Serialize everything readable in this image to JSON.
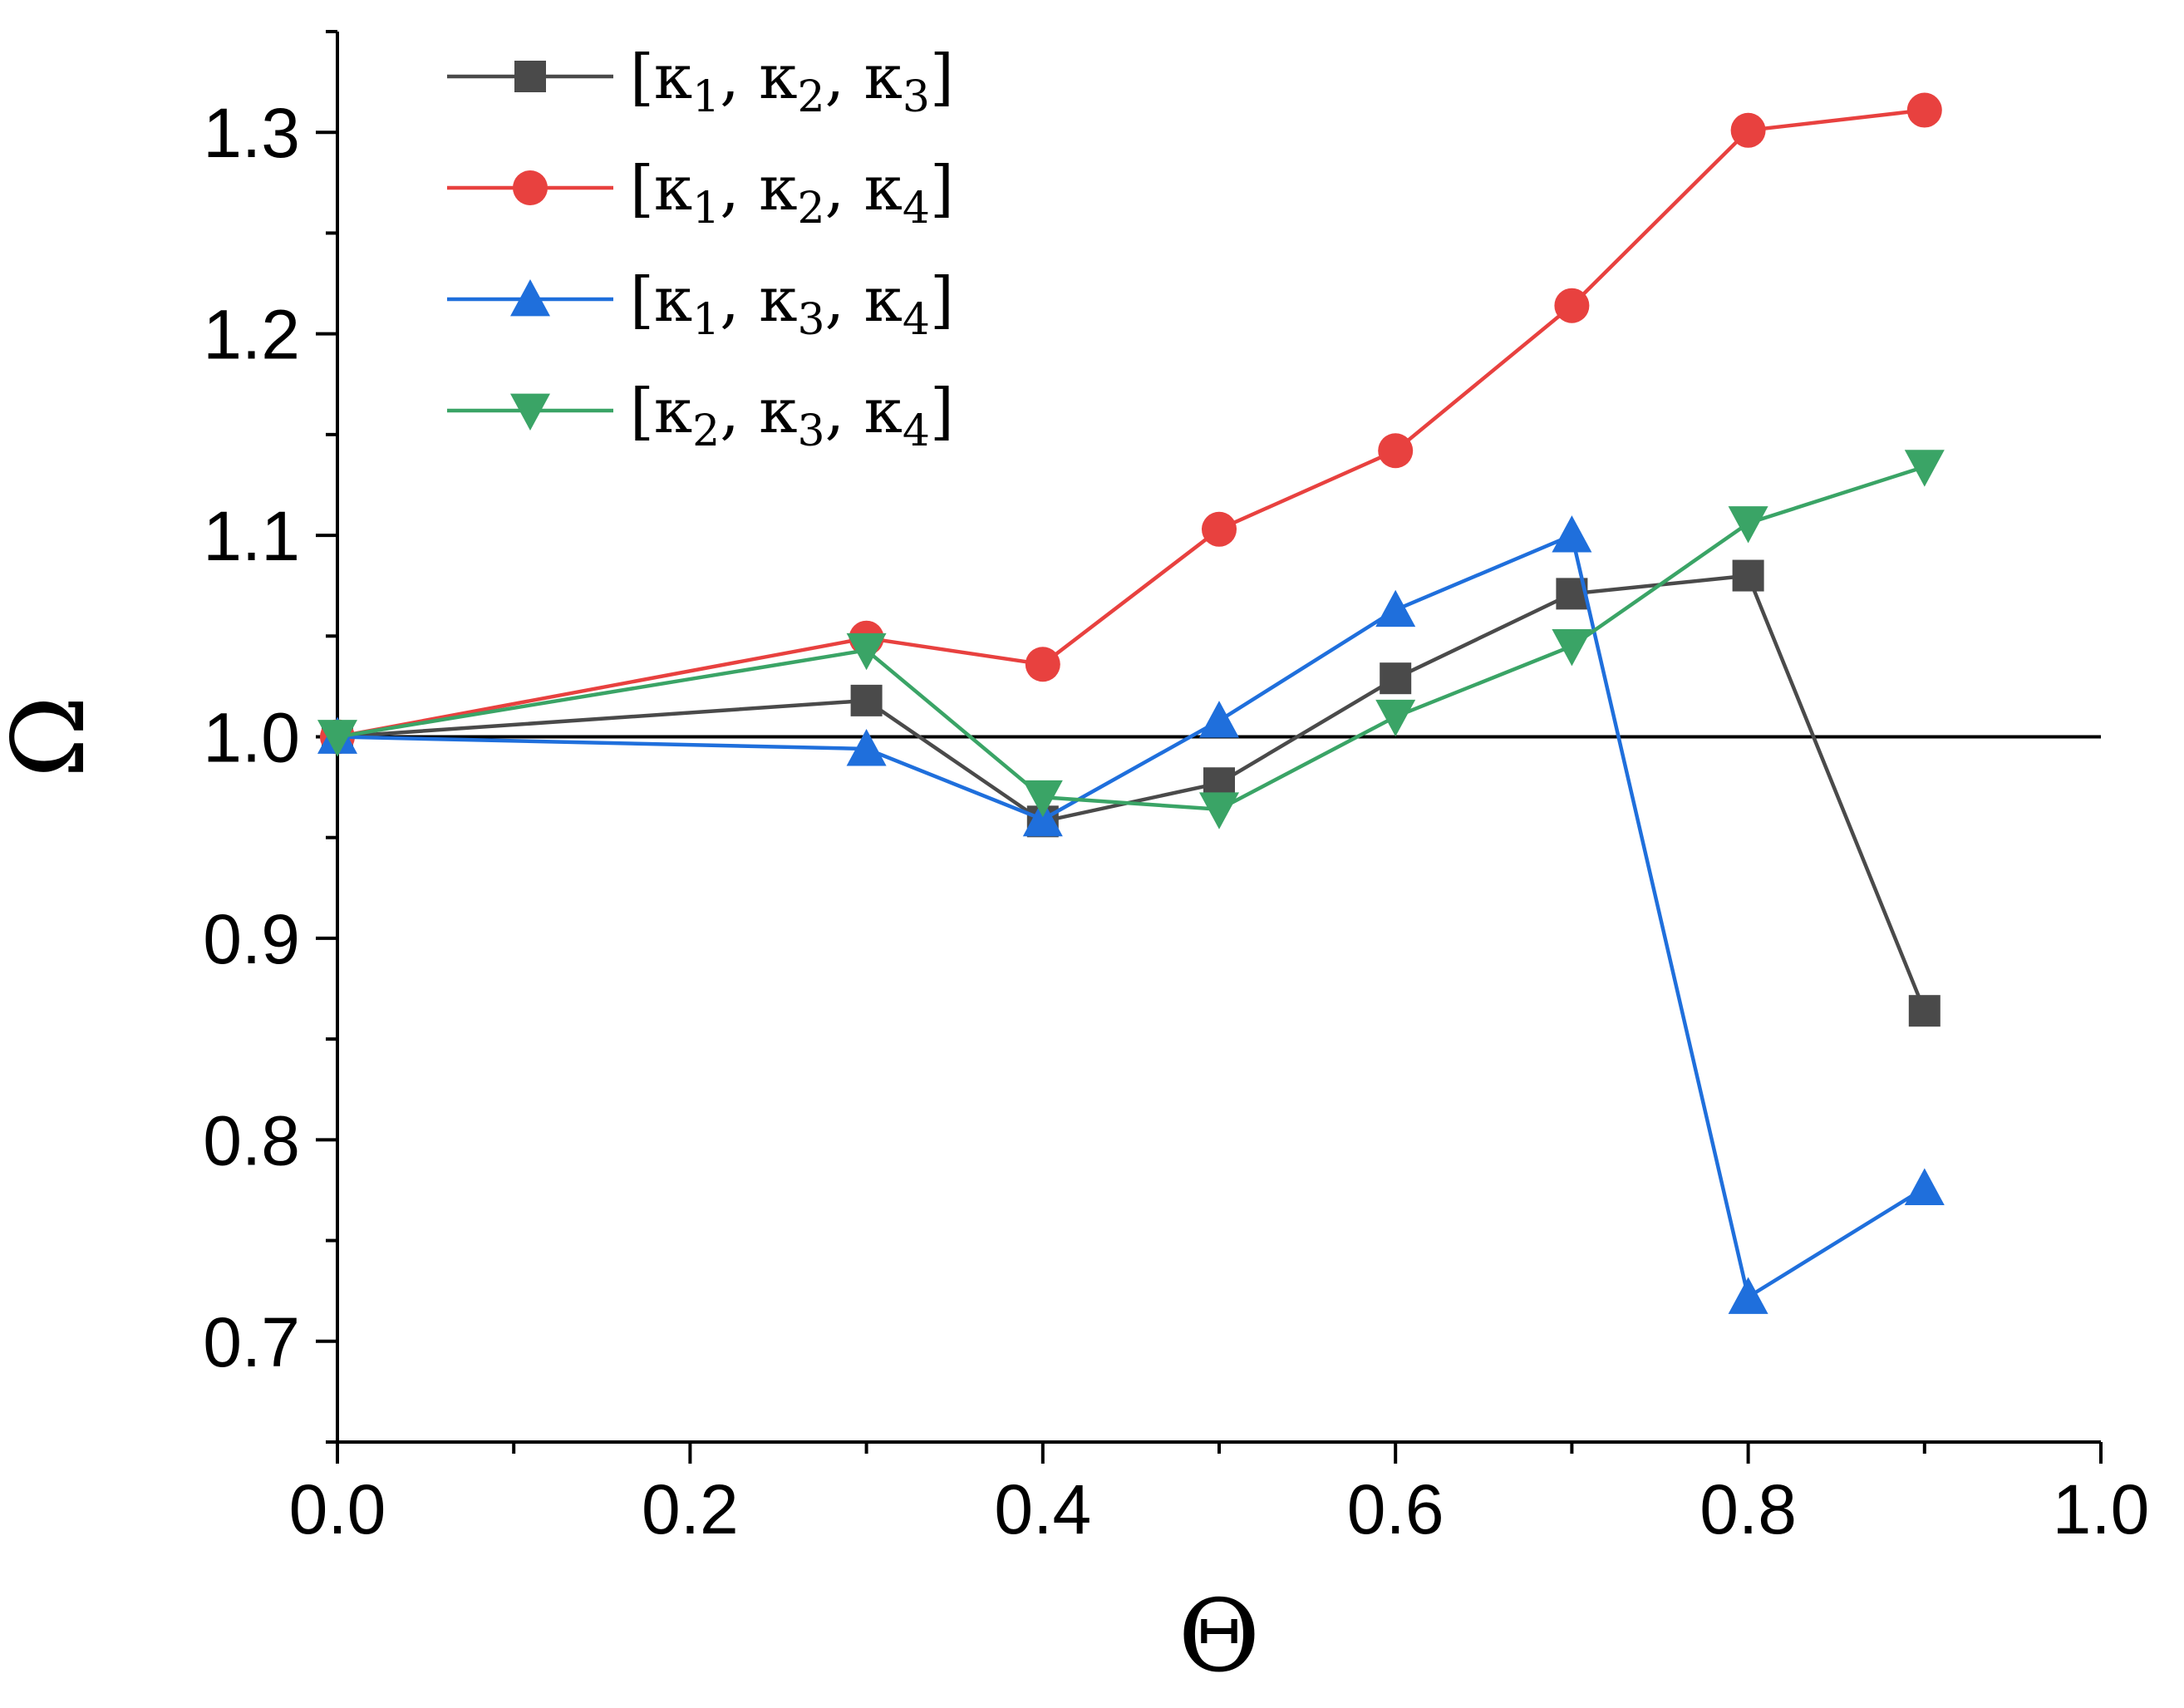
{
  "chart_data": {
    "type": "line",
    "title": "",
    "xlabel": "Θ",
    "ylabel": "Ω",
    "xlim": [
      0.0,
      1.0
    ],
    "ylim": [
      0.65,
      1.35
    ],
    "xticks": [
      0.0,
      0.2,
      0.4,
      0.6,
      0.8,
      1.0
    ],
    "xtick_labels": [
      "0.0",
      "0.2",
      "0.4",
      "0.6",
      "0.8",
      "1.0"
    ],
    "yticks": [
      0.7,
      0.8,
      0.9,
      1.0,
      1.1,
      1.2,
      1.3
    ],
    "ytick_labels": [
      "0.7",
      "0.8",
      "0.9",
      "1.0",
      "1.1",
      "1.2",
      "1.3"
    ],
    "reference_line": 1.0,
    "grid": false,
    "legend_position": "top-left",
    "x": [
      0.0,
      0.3,
      0.4,
      0.5,
      0.6,
      0.7,
      0.8,
      0.9
    ],
    "series": [
      {
        "name": "[κ1, κ2, κ3]",
        "label_parts": [
          "[κ",
          "1",
          ", κ",
          "2",
          ", κ",
          "3",
          "]"
        ],
        "marker": "square",
        "color": "#4a4a4a",
        "values": [
          1.0,
          1.018,
          0.958,
          0.977,
          1.029,
          1.071,
          1.08,
          0.864
        ]
      },
      {
        "name": "[κ1, κ2, κ4]",
        "label_parts": [
          "[κ",
          "1",
          ", κ",
          "2",
          ", κ",
          "4",
          "]"
        ],
        "marker": "circle",
        "color": "#e8413f",
        "values": [
          1.0,
          1.049,
          1.036,
          1.103,
          1.142,
          1.214,
          1.301,
          1.311
        ]
      },
      {
        "name": "[κ1, κ3, κ4]",
        "label_parts": [
          "[κ",
          "1",
          ", κ",
          "3",
          ", κ",
          "4",
          "]"
        ],
        "marker": "triangle-up",
        "color": "#1f6fdc",
        "values": [
          1.0,
          0.994,
          0.959,
          1.008,
          1.063,
          1.1,
          0.722,
          0.776
        ]
      },
      {
        "name": "[κ2, κ3, κ4]",
        "label_parts": [
          "[κ",
          "2",
          ", κ",
          "3",
          ", κ",
          "4",
          "]"
        ],
        "marker": "triangle-down",
        "color": "#3aa466",
        "values": [
          1.0,
          1.043,
          0.97,
          0.964,
          1.01,
          1.045,
          1.106,
          1.134
        ]
      }
    ]
  }
}
